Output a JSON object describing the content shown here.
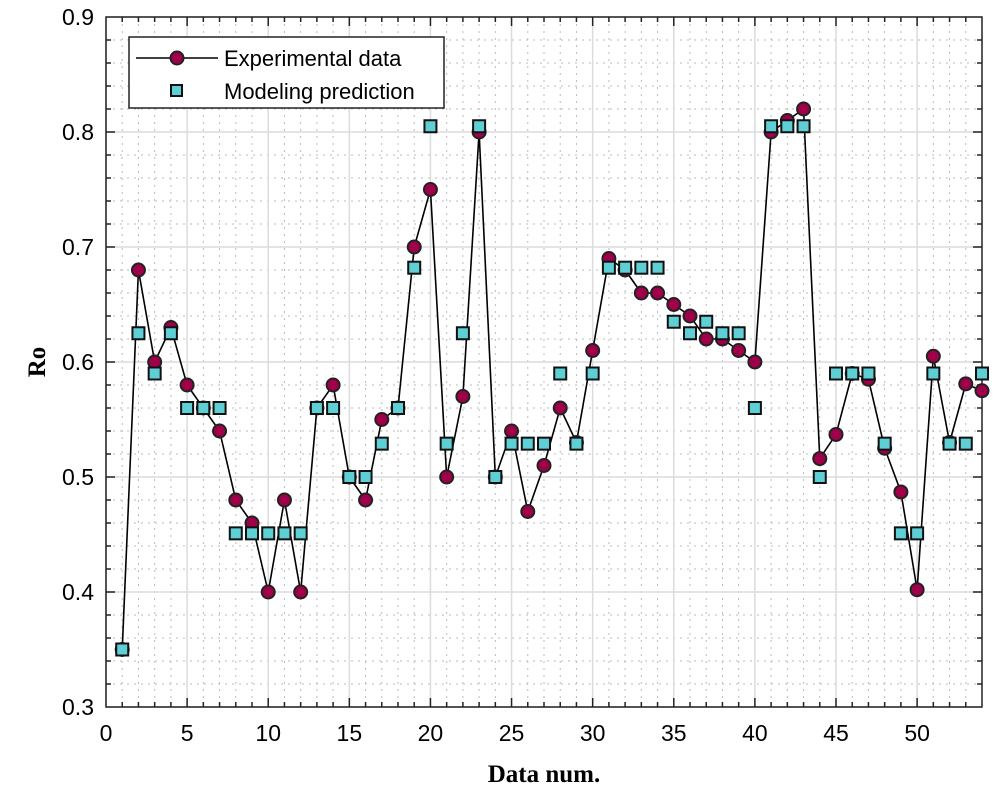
{
  "chart_data": {
    "type": "line",
    "title": "",
    "xlabel": "Data num.",
    "ylabel": "Ro",
    "xlim": [
      0,
      54
    ],
    "ylim": [
      0.3,
      0.9
    ],
    "xticks": [
      0,
      5,
      10,
      15,
      20,
      25,
      30,
      35,
      40,
      45,
      50
    ],
    "yticks": [
      0.3,
      0.4,
      0.5,
      0.6,
      0.7,
      0.8,
      0.9
    ],
    "xtick_labels": [
      "0",
      "5",
      "10",
      "15",
      "20",
      "25",
      "30",
      "35",
      "40",
      "45",
      "50"
    ],
    "ytick_labels": [
      "0.3",
      "0.4",
      "0.5",
      "0.6",
      "0.7",
      "0.8",
      "0.9"
    ],
    "grid": "major and minor",
    "legend_position": "top-left",
    "x": [
      1,
      2,
      3,
      4,
      5,
      6,
      7,
      8,
      9,
      10,
      11,
      12,
      13,
      14,
      15,
      16,
      17,
      18,
      19,
      20,
      21,
      22,
      23,
      24,
      25,
      26,
      27,
      28,
      29,
      30,
      31,
      32,
      33,
      34,
      35,
      36,
      37,
      38,
      39,
      40,
      41,
      42,
      43,
      44,
      45,
      46,
      47,
      48,
      49,
      50,
      51,
      52,
      53,
      54
    ],
    "series": [
      {
        "name": "Experimental data",
        "style": "line-circle",
        "color": "#a0004a",
        "values": [
          0.35,
          0.68,
          0.6,
          0.63,
          0.58,
          0.56,
          0.54,
          0.48,
          0.46,
          0.4,
          0.48,
          0.4,
          0.56,
          0.58,
          0.5,
          0.48,
          0.55,
          0.56,
          0.7,
          0.75,
          0.5,
          0.57,
          0.8,
          0.5,
          0.54,
          0.47,
          0.51,
          0.56,
          0.53,
          0.61,
          0.69,
          0.68,
          0.66,
          0.66,
          0.65,
          0.64,
          0.62,
          0.62,
          0.61,
          0.6,
          0.8,
          0.81,
          0.82,
          0.516,
          0.537,
          0.59,
          0.585,
          0.525,
          0.487,
          0.402,
          0.605,
          0.53,
          0.581,
          0.575
        ]
      },
      {
        "name": "Modeling prediction",
        "style": "square",
        "color": "#5fcfd6",
        "values": [
          0.35,
          0.625,
          0.59,
          0.625,
          0.56,
          0.56,
          0.56,
          0.451,
          0.451,
          0.451,
          0.451,
          0.451,
          0.56,
          0.56,
          0.5,
          0.5,
          0.529,
          0.56,
          0.682,
          0.805,
          0.529,
          0.625,
          0.805,
          0.5,
          0.529,
          0.529,
          0.529,
          0.59,
          0.529,
          0.59,
          0.682,
          0.682,
          0.682,
          0.682,
          0.635,
          0.625,
          0.635,
          0.625,
          0.625,
          0.56,
          0.805,
          0.805,
          0.805,
          0.5,
          0.59,
          0.59,
          0.59,
          0.529,
          0.451,
          0.451,
          0.59,
          0.529,
          0.529,
          0.59
        ]
      }
    ]
  }
}
